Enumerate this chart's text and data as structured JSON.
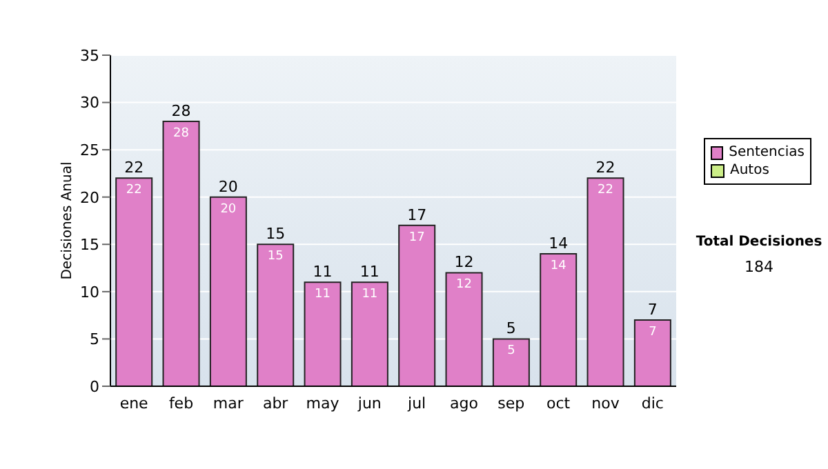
{
  "chart_data": {
    "type": "bar",
    "stacked": true,
    "ylabel": "Decisiones Anual",
    "categories": [
      "ene",
      "feb",
      "mar",
      "abr",
      "may",
      "jun",
      "jul",
      "ago",
      "sep",
      "oct",
      "nov",
      "dic"
    ],
    "series": [
      {
        "name": "Sentencias",
        "color": "#e080c8",
        "values": [
          22,
          28,
          20,
          15,
          11,
          11,
          17,
          12,
          5,
          14,
          22,
          7
        ],
        "value_labels": [
          "22",
          "28",
          "20",
          "15",
          "11",
          "11",
          "17",
          "12",
          "5",
          "14",
          "22",
          "7"
        ]
      },
      {
        "name": "Autos",
        "color": "#ccee88",
        "values": [
          0,
          0,
          0,
          0,
          0,
          0,
          0,
          0,
          0,
          0,
          0,
          0
        ]
      }
    ],
    "totals": [
      "22",
      "28",
      "20",
      "15",
      "11",
      "11",
      "17",
      "12",
      "5",
      "14",
      "22",
      "7"
    ],
    "ylim": [
      0,
      35
    ],
    "yticks": [
      0,
      5,
      10,
      15,
      20,
      25,
      30,
      35
    ],
    "grid": "y",
    "legend": "right",
    "annotations": [
      "Total Decisiones",
      "184"
    ]
  }
}
